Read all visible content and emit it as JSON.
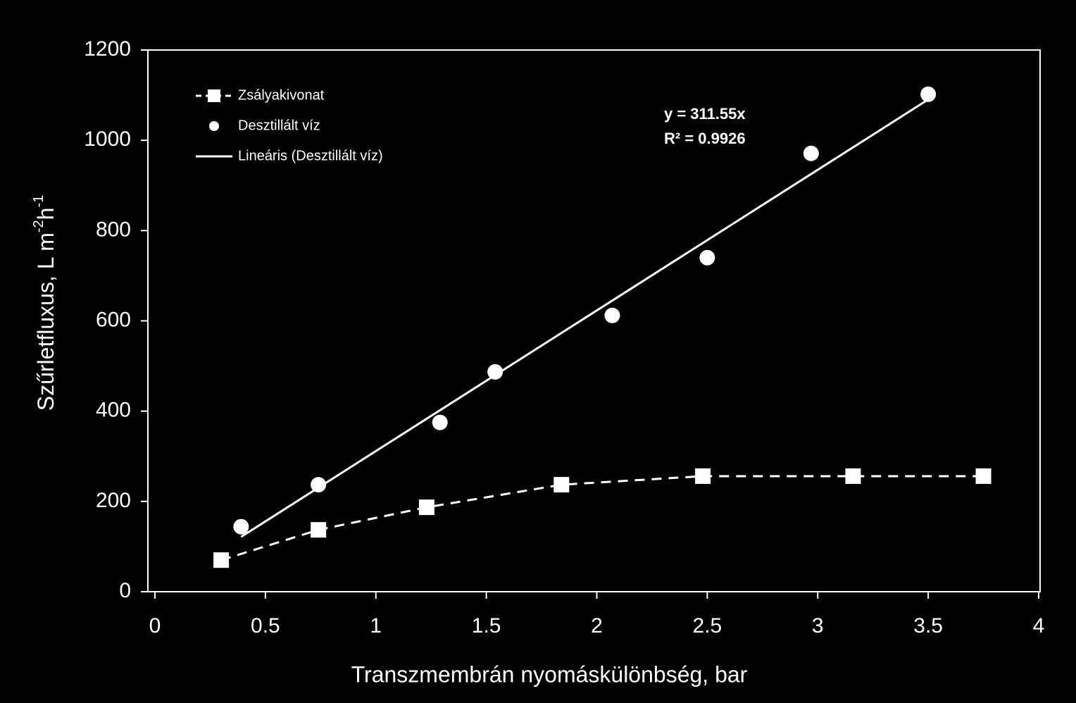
{
  "chart_data": {
    "type": "scatter",
    "x_label": "Transzmembrán nyomáskülönbség, bar",
    "y_label": [
      "Szűrletfluxus, L m",
      "-2",
      "h",
      "-1"
    ],
    "annotations": [
      "y = 311.55x",
      "R² = 0.9926"
    ],
    "xlim": [
      0,
      4
    ],
    "xticks": [
      0,
      0.5,
      1,
      1.5,
      2,
      2.5,
      3,
      3.5,
      4
    ],
    "ylim": [
      0,
      1200
    ],
    "yticks": [
      0,
      200,
      400,
      600,
      800,
      1000,
      1200
    ],
    "legend": "top-left",
    "series": [
      {
        "name": "Zsályakivonat",
        "color": "#ffffff",
        "marker": "square",
        "line": "dashed",
        "x": [
          0.3,
          0.74,
          1.23,
          1.84,
          2.48,
          3.16,
          3.75
        ],
        "values": [
          70,
          137,
          187,
          237,
          256,
          256,
          256
        ]
      },
      {
        "name": "Desztillált víz",
        "color": "#ffffff",
        "marker": "circle",
        "line": "none",
        "x": [
          0.39,
          0.74,
          1.29,
          1.54,
          2.07,
          2.5,
          2.97,
          3.5
        ],
        "values": [
          144,
          237,
          375,
          487,
          612,
          740,
          971,
          1102
        ]
      },
      {
        "name": "Lineáris (Desztillált víz)",
        "color": "#ffffff",
        "marker": "none",
        "line": "solid",
        "x": [
          0.39,
          3.5
        ],
        "values": [
          121.5,
          1090.4
        ]
      }
    ]
  }
}
